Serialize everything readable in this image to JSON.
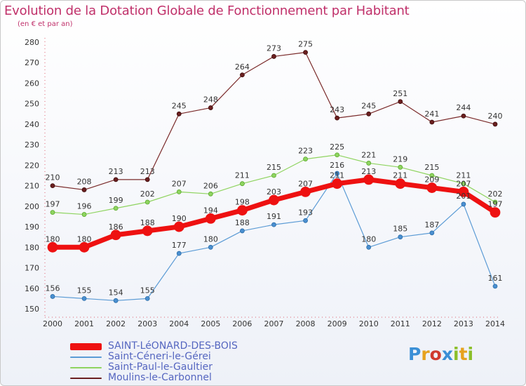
{
  "title": "Evolution de la Dotation Globale de Fonctionnement par Habitant",
  "subtitle": "(en € et par an)",
  "logo": {
    "text": "Proxiti",
    "colors": [
      "#3b8fd6",
      "#e6a21e",
      "#d03a2f",
      "#3b8fd6",
      "#8bbf2a",
      "#e6a21e",
      "#8bbf2a"
    ]
  },
  "chart_data": {
    "type": "line",
    "title": "Evolution de la Dotation Globale de Fonctionnement par Habitant",
    "subtitle": "(en € et par an)",
    "x": [
      "2000",
      "2001",
      "2002",
      "2003",
      "2004",
      "2005",
      "2006",
      "2007",
      "2008",
      "2009",
      "2010",
      "2011",
      "2012",
      "2013",
      "2014"
    ],
    "ylim": [
      150,
      280
    ],
    "yticks": [
      150,
      160,
      170,
      180,
      190,
      200,
      210,
      220,
      230,
      240,
      250,
      260,
      270,
      280
    ],
    "grid": false,
    "legend_position": "bottom-left",
    "series": [
      {
        "name": "SAINT-LéONARD-DES-BOIS",
        "color": "#ee1111",
        "values": [
          180,
          180,
          186,
          188,
          190,
          194,
          198,
          203,
          207,
          211,
          213,
          211,
          209,
          207,
          197
        ]
      },
      {
        "name": "Saint-Céneri-le-Gérei",
        "color": "#5b9bd5",
        "values": [
          156,
          155,
          154,
          155,
          177,
          180,
          188,
          191,
          193,
          216,
          180,
          185,
          187,
          201,
          161
        ]
      },
      {
        "name": "Saint-Paul-le-Gaultier",
        "color": "#8fd460",
        "values": [
          197,
          196,
          199,
          202,
          207,
          206,
          211,
          215,
          223,
          225,
          221,
          219,
          215,
          211,
          202
        ]
      },
      {
        "name": "Moulins-le-Carbonnel",
        "color": "#6b1f1f",
        "values": [
          210,
          208,
          213,
          213,
          245,
          248,
          264,
          273,
          275,
          243,
          245,
          251,
          241,
          244,
          240
        ]
      }
    ]
  }
}
